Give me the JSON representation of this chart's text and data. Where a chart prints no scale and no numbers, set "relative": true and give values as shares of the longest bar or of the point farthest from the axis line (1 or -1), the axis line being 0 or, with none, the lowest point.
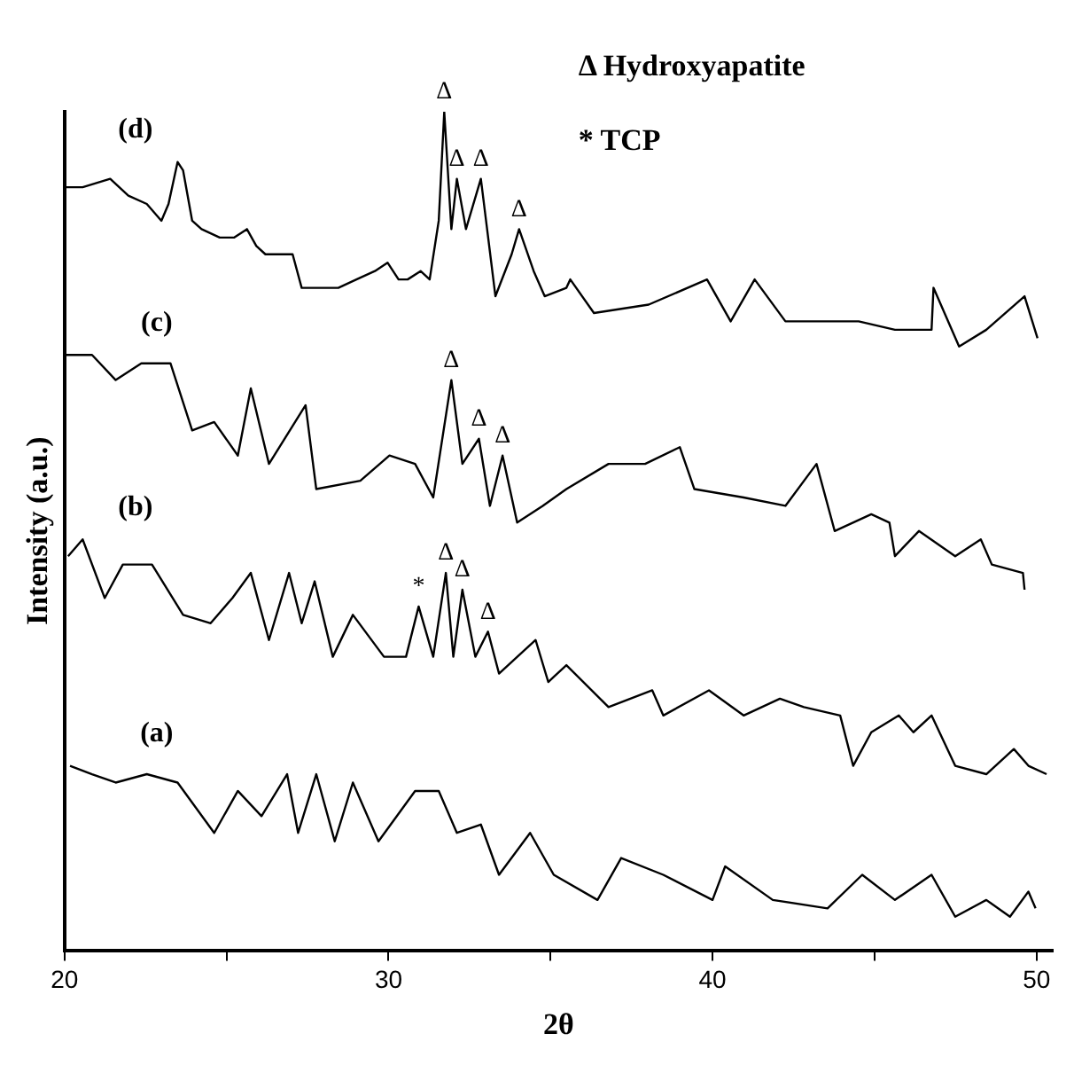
{
  "chart_data": {
    "type": "line",
    "relative": true,
    "xlabel": "2θ",
    "ylabel": "Intensity (a.u.)",
    "xlim": [
      20,
      50.5
    ],
    "xticks": [
      20,
      {
        "value": 25,
        "label": null
      },
      30,
      {
        "value": 35,
        "label": null
      },
      40,
      {
        "value": 45,
        "label": null
      },
      50
    ],
    "grid": false,
    "legend": false,
    "marker": "none",
    "line_style": "solid",
    "series": [
      {
        "name": "(d)",
        "color": "#000000",
        "x": [
          20,
          20.56,
          21.41,
          21.97,
          22.54,
          22.99,
          23.21,
          23.49,
          23.66,
          23.94,
          24.23,
          24.79,
          25.24,
          25.63,
          25.92,
          26.2,
          26.76,
          27.04,
          27.32,
          27.89,
          28.45,
          29.01,
          29.58,
          29.97,
          30.31,
          30.59,
          30.99,
          31.27,
          31.55,
          31.72,
          31.94,
          32.11,
          32.39,
          32.85,
          33.3,
          33.8,
          34.03,
          34.48,
          34.82,
          35.49,
          35.61,
          36.34,
          38.03,
          39.83,
          40.56,
          41.3,
          42.25,
          43.38,
          44.51,
          45.63,
          46.76,
          46.82,
          47.61,
          48.45,
          49.63,
          50.03
        ],
        "values": [
          0.91,
          0.91,
          0.92,
          0.9,
          0.89,
          0.87,
          0.89,
          0.94,
          0.93,
          0.87,
          0.86,
          0.85,
          0.85,
          0.86,
          0.84,
          0.83,
          0.83,
          0.83,
          0.79,
          0.79,
          0.79,
          0.8,
          0.81,
          0.82,
          0.8,
          0.8,
          0.81,
          0.8,
          0.87,
          1.0,
          0.86,
          0.92,
          0.86,
          0.92,
          0.78,
          0.83,
          0.86,
          0.81,
          0.78,
          0.79,
          0.8,
          0.76,
          0.77,
          0.8,
          0.75,
          0.8,
          0.75,
          0.75,
          0.75,
          0.74,
          0.74,
          0.79,
          0.72,
          0.74,
          0.78,
          0.73
        ]
      },
      {
        "name": "(c)",
        "color": "#000000",
        "x": [
          20,
          20.85,
          21.58,
          22.37,
          23.27,
          23.94,
          24.62,
          25.35,
          25.75,
          26.31,
          27.44,
          27.77,
          29.13,
          30.03,
          30.82,
          31.38,
          31.94,
          32.28,
          32.79,
          33.13,
          33.52,
          33.97,
          34.76,
          35.49,
          36.79,
          37.92,
          38.99,
          39.44,
          40.96,
          42.25,
          43.21,
          43.77,
          44.9,
          45.46,
          45.63,
          46.37,
          47.49,
          48.28,
          48.62,
          49.58,
          49.63
        ],
        "values": [
          0.71,
          0.71,
          0.68,
          0.7,
          0.7,
          0.62,
          0.63,
          0.59,
          0.67,
          0.58,
          0.65,
          0.55,
          0.56,
          0.59,
          0.58,
          0.54,
          0.68,
          0.58,
          0.61,
          0.53,
          0.59,
          0.51,
          0.53,
          0.55,
          0.58,
          0.58,
          0.6,
          0.55,
          0.54,
          0.53,
          0.58,
          0.5,
          0.52,
          0.51,
          0.47,
          0.5,
          0.47,
          0.49,
          0.46,
          0.45,
          0.43
        ]
      },
      {
        "name": "(b)",
        "color": "#000000",
        "x": [
          20.11,
          20.56,
          21.24,
          21.8,
          22.7,
          23.66,
          24.51,
          25.18,
          25.75,
          26.31,
          26.93,
          27.32,
          27.72,
          28.28,
          28.9,
          29.86,
          30.54,
          30.93,
          31.38,
          31.77,
          32.0,
          32.28,
          32.68,
          33.07,
          33.41,
          34.54,
          34.93,
          35.49,
          36.79,
          38.14,
          38.48,
          39.89,
          40.96,
          42.08,
          42.82,
          43.94,
          44.34,
          44.9,
          45.75,
          46.2,
          46.76,
          47.49,
          48.45,
          49.3,
          49.75,
          50.31
        ],
        "values": [
          0.47,
          0.49,
          0.42,
          0.46,
          0.46,
          0.4,
          0.39,
          0.42,
          0.45,
          0.37,
          0.45,
          0.39,
          0.44,
          0.35,
          0.4,
          0.35,
          0.35,
          0.41,
          0.35,
          0.45,
          0.35,
          0.43,
          0.35,
          0.38,
          0.33,
          0.37,
          0.32,
          0.34,
          0.29,
          0.31,
          0.28,
          0.31,
          0.28,
          0.3,
          0.29,
          0.28,
          0.22,
          0.26,
          0.28,
          0.26,
          0.28,
          0.22,
          0.21,
          0.24,
          0.22,
          0.21
        ]
      },
      {
        "name": "(a)",
        "color": "#000000",
        "x": [
          20.17,
          20.85,
          21.58,
          22.54,
          23.49,
          24.62,
          25.35,
          26.08,
          26.87,
          27.21,
          27.77,
          28.34,
          28.9,
          29.69,
          30.82,
          31.55,
          32.11,
          32.85,
          33.41,
          34.37,
          35.1,
          36.45,
          37.18,
          38.48,
          40.0,
          40.39,
          41.86,
          43.55,
          44.62,
          45.63,
          46.76,
          47.49,
          48.45,
          49.18,
          49.75,
          49.97
        ],
        "values": [
          0.22,
          0.21,
          0.2,
          0.21,
          0.2,
          0.14,
          0.19,
          0.16,
          0.21,
          0.14,
          0.21,
          0.13,
          0.2,
          0.13,
          0.19,
          0.19,
          0.14,
          0.15,
          0.09,
          0.14,
          0.09,
          0.06,
          0.11,
          0.09,
          0.06,
          0.1,
          0.06,
          0.05,
          0.09,
          0.06,
          0.09,
          0.04,
          0.06,
          0.04,
          0.07,
          0.05
        ]
      }
    ],
    "annotations": [
      "Δ Hydroxyapatite",
      "* TCP",
      {
        "text": "Δ",
        "x": 31.72,
        "y": 1.0
      },
      {
        "text": "Δ",
        "x": 32.11,
        "y": 0.92
      },
      {
        "text": "Δ",
        "x": 32.85,
        "y": 0.92
      },
      {
        "text": "Δ",
        "x": 34.03,
        "y": 0.86
      },
      {
        "text": "Δ",
        "x": 31.94,
        "y": 0.68
      },
      {
        "text": "Δ",
        "x": 32.79,
        "y": 0.61
      },
      {
        "text": "Δ",
        "x": 33.52,
        "y": 0.59
      },
      {
        "text": "*",
        "x": 30.93,
        "y": 0.41
      },
      {
        "text": "Δ",
        "x": 31.77,
        "y": 0.45
      },
      {
        "text": "Δ",
        "x": 32.28,
        "y": 0.43
      },
      {
        "text": "Δ",
        "x": 33.07,
        "y": 0.38
      }
    ]
  }
}
